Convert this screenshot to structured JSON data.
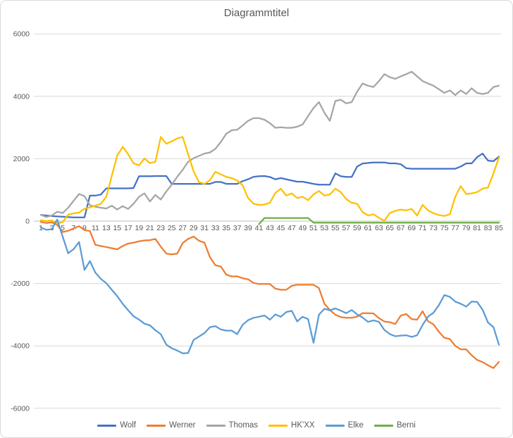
{
  "chart_data": {
    "type": "line",
    "title": "Diagrammtitel",
    "xlabel": "",
    "ylabel": "",
    "ylim": [
      -6000,
      6000
    ],
    "grid": true,
    "legend_position": "bottom",
    "y_ticks": [
      6000,
      4000,
      2000,
      0,
      -2000,
      -4000,
      -6000
    ],
    "x_tick_labels": [
      "1",
      "3",
      "5",
      "7",
      "9",
      "11",
      "13",
      "15",
      "17",
      "19",
      "21",
      "23",
      "25",
      "27",
      "29",
      "31",
      "33",
      "35",
      "37",
      "39",
      "41",
      "43",
      "45",
      "47",
      "49",
      "51",
      "53",
      "55",
      "57",
      "59",
      "61",
      "63",
      "65",
      "67",
      "69",
      "71",
      "73",
      "75",
      "77",
      "79",
      "81",
      "83",
      "85"
    ],
    "x_range": [
      1,
      85
    ],
    "series": [
      {
        "id": "wolf",
        "name": "Wolf",
        "color": "#4472C4",
        "values": [
          200,
          180,
          165,
          150,
          140,
          130,
          120,
          120,
          120,
          820,
          820,
          850,
          1050,
          1050,
          1050,
          1050,
          1050,
          1060,
          1440,
          1440,
          1440,
          1445,
          1445,
          1445,
          1195,
          1195,
          1195,
          1195,
          1195,
          1195,
          1195,
          1195,
          1255,
          1255,
          1195,
          1195,
          1195,
          1280,
          1340,
          1420,
          1440,
          1445,
          1415,
          1340,
          1380,
          1340,
          1300,
          1265,
          1265,
          1230,
          1195,
          1170,
          1170,
          1170,
          1530,
          1440,
          1415,
          1415,
          1750,
          1845,
          1865,
          1880,
          1880,
          1880,
          1850,
          1850,
          1825,
          1695,
          1680,
          1680,
          1680,
          1680,
          1680,
          1680,
          1680,
          1680,
          1680,
          1750,
          1850,
          1850,
          2050,
          2165,
          1940,
          1920,
          2065
        ]
      },
      {
        "id": "werner",
        "name": "Werner",
        "color": "#ED7D31",
        "values": [
          -30,
          -60,
          -40,
          -120,
          -350,
          -310,
          -240,
          -160,
          -290,
          -320,
          -760,
          -800,
          -830,
          -870,
          -905,
          -800,
          -720,
          -690,
          -645,
          -620,
          -610,
          -570,
          -820,
          -1040,
          -1065,
          -1040,
          -705,
          -570,
          -495,
          -630,
          -690,
          -1155,
          -1415,
          -1455,
          -1715,
          -1775,
          -1770,
          -1830,
          -1865,
          -1980,
          -2015,
          -2015,
          -2015,
          -2165,
          -2200,
          -2200,
          -2075,
          -2040,
          -2040,
          -2040,
          -2040,
          -2150,
          -2650,
          -2850,
          -3000,
          -3080,
          -3100,
          -3100,
          -3060,
          -2950,
          -2950,
          -2960,
          -3110,
          -3220,
          -3240,
          -3300,
          -3030,
          -2980,
          -3140,
          -3160,
          -2890,
          -3210,
          -3310,
          -3550,
          -3740,
          -3780,
          -4000,
          -4110,
          -4110,
          -4300,
          -4450,
          -4520,
          -4620,
          -4710,
          -4510
        ]
      },
      {
        "id": "thomas",
        "name": "Thomas",
        "color": "#A5A5A5",
        "values": [
          200,
          130,
          180,
          300,
          260,
          430,
          650,
          870,
          800,
          510,
          460,
          430,
          405,
          495,
          370,
          480,
          390,
          555,
          780,
          890,
          630,
          840,
          690,
          950,
          1170,
          1420,
          1640,
          1900,
          2015,
          2090,
          2165,
          2200,
          2315,
          2540,
          2800,
          2915,
          2930,
          3065,
          3215,
          3300,
          3300,
          3250,
          3140,
          2990,
          3010,
          2990,
          2990,
          3025,
          3100,
          3365,
          3625,
          3815,
          3475,
          3215,
          3850,
          3890,
          3775,
          3815,
          4150,
          4410,
          4340,
          4300,
          4490,
          4710,
          4615,
          4560,
          4640,
          4710,
          4790,
          4640,
          4490,
          4410,
          4340,
          4225,
          4110,
          4190,
          4040,
          4190,
          4075,
          4260,
          4110,
          4075,
          4110,
          4300,
          4340
        ]
      },
      {
        "id": "hkxx",
        "name": "HK'XX",
        "color": "#FFC000",
        "values": [
          30,
          0,
          20,
          -80,
          -30,
          200,
          250,
          270,
          400,
          440,
          495,
          555,
          780,
          1450,
          2100,
          2380,
          2150,
          1850,
          1790,
          2010,
          1860,
          1900,
          2700,
          2480,
          2560,
          2650,
          2700,
          2150,
          1600,
          1250,
          1195,
          1310,
          1580,
          1500,
          1420,
          1380,
          1300,
          1150,
          740,
          560,
          520,
          530,
          590,
          900,
          1040,
          820,
          890,
          740,
          780,
          670,
          855,
          965,
          820,
          855,
          1040,
          930,
          705,
          590,
          555,
          290,
          180,
          220,
          105,
          10,
          260,
          330,
          370,
          345,
          390,
          180,
          520,
          345,
          255,
          195,
          165,
          220,
          780,
          1120,
          870,
          890,
          930,
          1040,
          1080,
          1530,
          2040
        ]
      },
      {
        "id": "elke",
        "name": "Elke",
        "color": "#5B9BD5",
        "values": [
          -200,
          -280,
          -260,
          50,
          -500,
          -1030,
          -900,
          -670,
          -1565,
          -1280,
          -1655,
          -1850,
          -1990,
          -2200,
          -2405,
          -2650,
          -2855,
          -3050,
          -3155,
          -3290,
          -3340,
          -3500,
          -3625,
          -3960,
          -4075,
          -4150,
          -4240,
          -4230,
          -3810,
          -3700,
          -3590,
          -3400,
          -3365,
          -3475,
          -3510,
          -3510,
          -3625,
          -3325,
          -3175,
          -3100,
          -3065,
          -3025,
          -3160,
          -2990,
          -3065,
          -2915,
          -2875,
          -3215,
          -3065,
          -3140,
          -3900,
          -3000,
          -2810,
          -2860,
          -2800,
          -2870,
          -2950,
          -2850,
          -2990,
          -3090,
          -3230,
          -3180,
          -3230,
          -3490,
          -3620,
          -3690,
          -3670,
          -3660,
          -3710,
          -3660,
          -3330,
          -3060,
          -2940,
          -2690,
          -2370,
          -2430,
          -2580,
          -2650,
          -2740,
          -2580,
          -2590,
          -2840,
          -3250,
          -3400,
          -3960
        ]
      },
      {
        "id": "berni",
        "name": "Berni",
        "color": "#70AD47",
        "values": [
          null,
          null,
          null,
          null,
          null,
          null,
          null,
          null,
          null,
          null,
          null,
          null,
          null,
          null,
          null,
          null,
          null,
          null,
          null,
          null,
          null,
          null,
          null,
          null,
          null,
          null,
          null,
          null,
          null,
          null,
          null,
          null,
          null,
          null,
          null,
          null,
          null,
          null,
          null,
          null,
          -100,
          100,
          100,
          100,
          100,
          100,
          100,
          100,
          100,
          100,
          -50,
          -50,
          -50,
          -50,
          -50,
          -50,
          -50,
          -50,
          -50,
          -50,
          -50,
          -50,
          -50,
          -50,
          -50,
          -50,
          -50,
          -50,
          -50,
          -50,
          -50,
          -50,
          -50,
          -50,
          -50,
          -50,
          -50,
          -50,
          -50,
          -50,
          -50,
          -50,
          -50,
          -50,
          -50
        ]
      }
    ]
  },
  "colors": {
    "gridline": "#D9D9D9",
    "zero_axis": "#BFBFBF",
    "tick_text": "#595959",
    "frame_border": "#D9D9D9",
    "background": "#FFFFFF"
  }
}
